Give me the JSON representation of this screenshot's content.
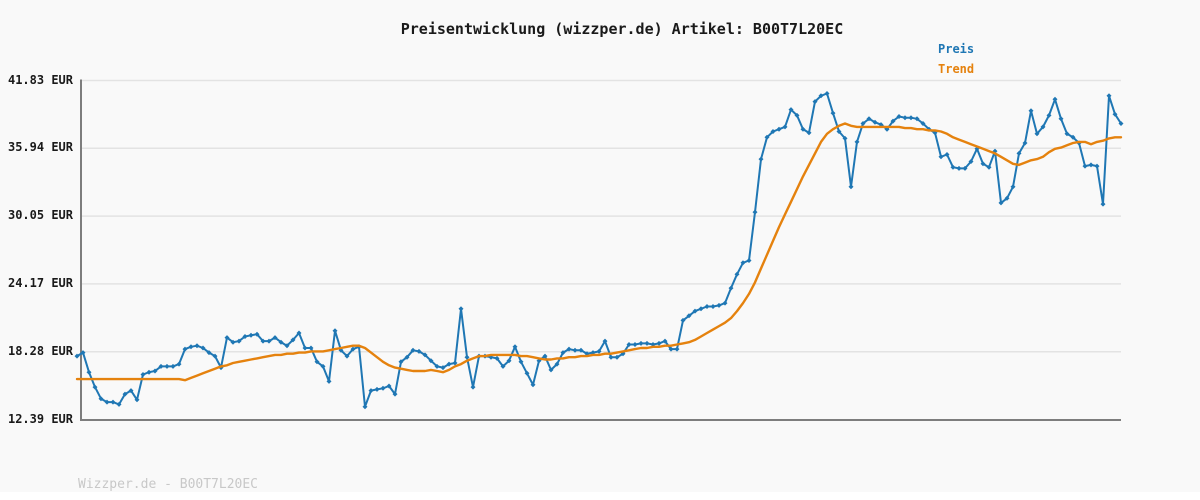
{
  "title": "Preisentwicklung (wizzper.de) Artikel: B00T7L20EC",
  "footer": "Wizzper.de - B00T7L20EC",
  "colors": {
    "price": "#1f77b4",
    "trend": "#e5820e",
    "grid": "#e3e3e3",
    "axis": "#7d7d7d",
    "background": "#f9f9f9",
    "title_text": "#1a1a1a",
    "tick_text": "#1a1a1a",
    "footer_text": "#c8c8c8"
  },
  "legend": [
    {
      "label": "Preis",
      "color": "#1f77b4"
    },
    {
      "label": "Trend",
      "color": "#e5820e"
    }
  ],
  "chart_data": {
    "type": "line",
    "title": "Preisentwicklung (wizzper.de) Artikel: B00T7L20EC",
    "xlabel": "",
    "ylabel": "EUR",
    "ylim": [
      12.39,
      41.83
    ],
    "grid": "horizontal",
    "legend_position": "top-right",
    "x_axis_labels": "none",
    "y_ticks": [
      "41.83 EUR",
      "35.94 EUR",
      "30.05 EUR",
      "24.17 EUR",
      "18.28 EUR",
      "12.39 EUR"
    ],
    "y_tick_values": [
      41.83,
      35.94,
      30.05,
      24.17,
      18.28,
      12.39
    ],
    "series": [
      {
        "name": "Preis",
        "color": "#1f77b4",
        "marker": "diamond",
        "values": [
          17.9,
          18.2,
          16.5,
          15.2,
          14.2,
          13.9,
          13.9,
          13.7,
          14.6,
          14.9,
          14.1,
          16.3,
          16.5,
          16.6,
          17.0,
          17.0,
          17.0,
          17.2,
          18.5,
          18.7,
          18.8,
          18.6,
          18.2,
          17.9,
          16.9,
          19.5,
          19.1,
          19.2,
          19.6,
          19.7,
          19.8,
          19.2,
          19.2,
          19.5,
          19.1,
          18.8,
          19.3,
          19.9,
          18.6,
          18.6,
          17.4,
          17.0,
          15.7,
          20.1,
          18.4,
          17.9,
          18.5,
          18.7,
          13.5,
          14.9,
          15.0,
          15.1,
          15.3,
          14.6,
          17.4,
          17.8,
          18.4,
          18.3,
          18.0,
          17.5,
          17.0,
          16.9,
          17.2,
          17.3,
          22.0,
          17.8,
          15.2,
          17.9,
          17.9,
          17.8,
          17.7,
          17.0,
          17.5,
          18.7,
          17.4,
          16.4,
          15.4,
          17.5,
          17.9,
          16.7,
          17.2,
          18.2,
          18.5,
          18.4,
          18.4,
          18.1,
          18.2,
          18.3,
          19.2,
          17.8,
          17.8,
          18.1,
          18.9,
          18.9,
          19.0,
          19.0,
          18.9,
          19.0,
          19.2,
          18.5,
          18.5,
          21.0,
          21.4,
          21.8,
          22.0,
          22.2,
          22.2,
          22.3,
          22.5,
          23.8,
          25.0,
          26.0,
          26.2,
          30.4,
          35.0,
          36.9,
          37.4,
          37.6,
          37.8,
          39.3,
          38.8,
          37.6,
          37.3,
          40.0,
          40.5,
          40.7,
          39.0,
          37.4,
          36.8,
          32.6,
          36.5,
          38.1,
          38.5,
          38.2,
          38.0,
          37.6,
          38.3,
          38.7,
          38.6,
          38.6,
          38.5,
          38.1,
          37.6,
          37.3,
          35.2,
          35.4,
          34.3,
          34.2,
          34.2,
          34.8,
          35.9,
          34.6,
          34.3,
          35.7,
          31.2,
          31.6,
          32.6,
          35.5,
          36.4,
          39.2,
          37.2,
          37.8,
          38.8,
          40.2,
          38.5,
          37.2,
          36.9,
          36.4,
          34.4,
          34.5,
          34.4,
          31.1,
          40.5,
          38.9,
          38.1
        ]
      },
      {
        "name": "Trend",
        "color": "#e5820e",
        "marker": "none",
        "values": [
          15.9,
          15.9,
          15.9,
          15.9,
          15.9,
          15.9,
          15.9,
          15.9,
          15.9,
          15.9,
          15.9,
          15.9,
          15.9,
          15.9,
          15.9,
          15.9,
          15.9,
          15.9,
          15.8,
          16.0,
          16.2,
          16.4,
          16.6,
          16.8,
          17.0,
          17.1,
          17.3,
          17.4,
          17.5,
          17.6,
          17.7,
          17.8,
          17.9,
          18.0,
          18.0,
          18.1,
          18.1,
          18.2,
          18.2,
          18.3,
          18.3,
          18.3,
          18.4,
          18.5,
          18.6,
          18.7,
          18.8,
          18.8,
          18.6,
          18.2,
          17.8,
          17.4,
          17.1,
          16.9,
          16.8,
          16.7,
          16.6,
          16.6,
          16.6,
          16.7,
          16.6,
          16.5,
          16.7,
          17.0,
          17.2,
          17.5,
          17.7,
          17.9,
          17.9,
          18.0,
          18.0,
          18.0,
          18.0,
          18.0,
          17.9,
          17.9,
          17.8,
          17.7,
          17.6,
          17.6,
          17.7,
          17.7,
          17.8,
          17.8,
          17.9,
          17.9,
          18.0,
          18.0,
          18.1,
          18.1,
          18.2,
          18.3,
          18.4,
          18.5,
          18.6,
          18.6,
          18.7,
          18.7,
          18.8,
          18.8,
          18.9,
          19.0,
          19.1,
          19.3,
          19.6,
          19.9,
          20.2,
          20.5,
          20.8,
          21.2,
          21.8,
          22.5,
          23.3,
          24.3,
          25.5,
          26.7,
          27.9,
          29.1,
          30.2,
          31.3,
          32.4,
          33.5,
          34.5,
          35.5,
          36.5,
          37.2,
          37.6,
          37.9,
          38.1,
          37.9,
          37.8,
          37.8,
          37.8,
          37.8,
          37.8,
          37.8,
          37.8,
          37.8,
          37.7,
          37.7,
          37.6,
          37.6,
          37.5,
          37.5,
          37.4,
          37.2,
          36.9,
          36.7,
          36.5,
          36.3,
          36.1,
          35.9,
          35.7,
          35.5,
          35.2,
          34.9,
          34.6,
          34.5,
          34.7,
          34.9,
          35.0,
          35.2,
          35.6,
          35.9,
          36.0,
          36.2,
          36.4,
          36.5,
          36.5,
          36.3,
          36.5,
          36.6,
          36.8,
          36.9,
          36.9
        ]
      }
    ]
  }
}
